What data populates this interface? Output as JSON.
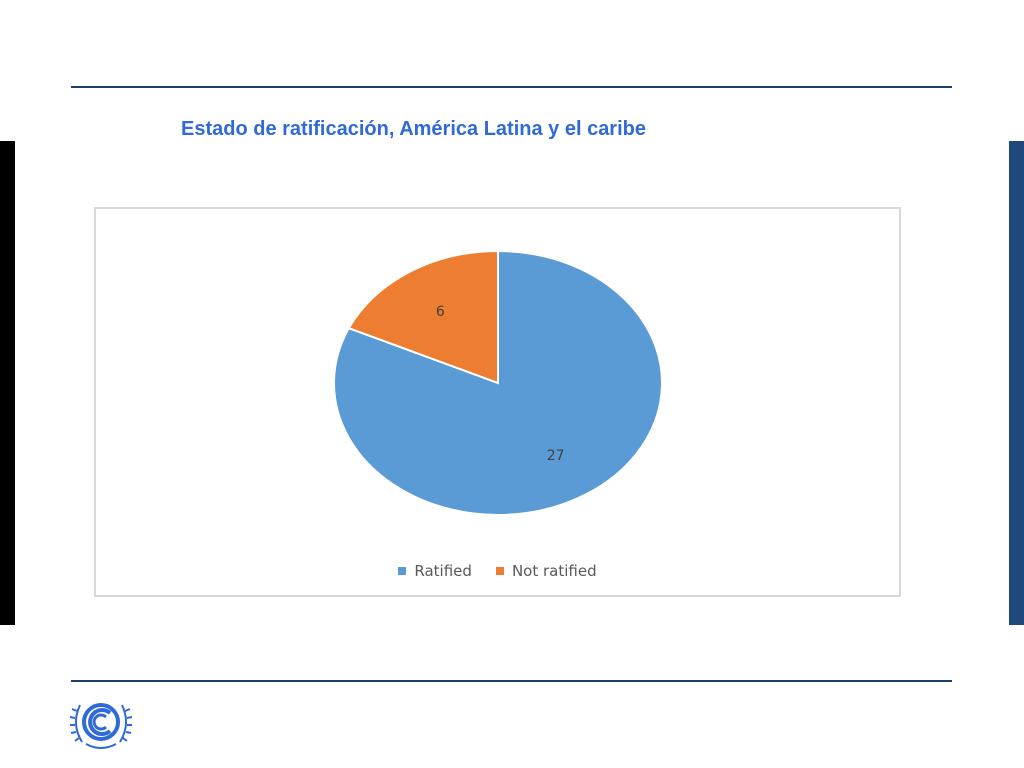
{
  "slide": {
    "title": "Estado de ratificación, América Latina y el caribe",
    "title_color": "#2f6ad8",
    "rule_color": "#1f3f6e",
    "left_bar_color": "#000000",
    "right_bar_color": "#1f497d"
  },
  "chart_data": {
    "type": "pie",
    "title": "",
    "categories": [
      "Ratified",
      "Not ratified"
    ],
    "values": [
      27,
      6
    ],
    "colors": [
      "#5b9bd5",
      "#ed7d31"
    ],
    "data_labels": [
      "27",
      "6"
    ],
    "legend_position": "bottom",
    "start_angle": "12 o'clock",
    "direction": "clockwise"
  },
  "logo": {
    "icon": "unfccc-emblem-icon",
    "color": "#2f6ad8"
  }
}
